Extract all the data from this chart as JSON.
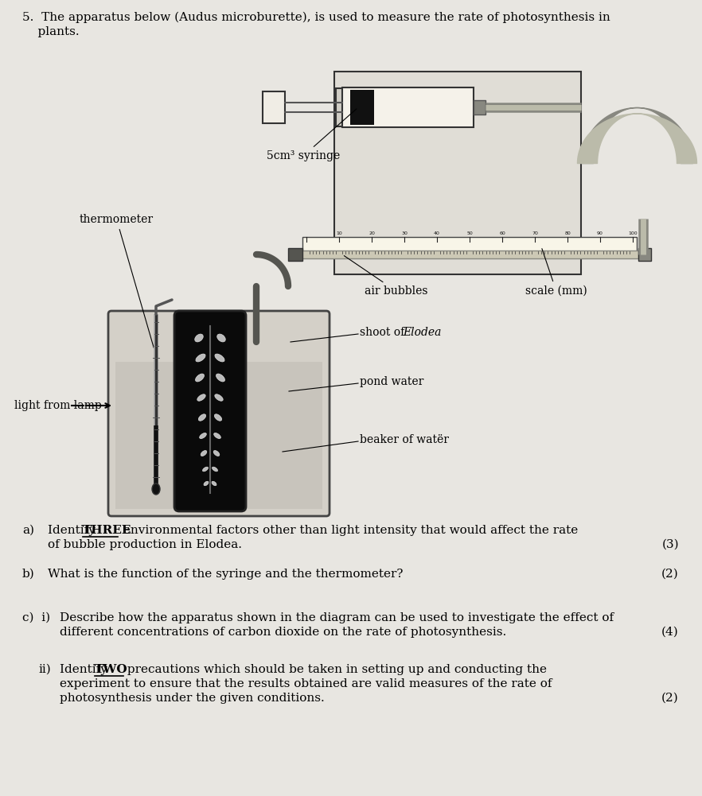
{
  "bg_color": "#e8e6e1",
  "title_line1": "5.  The apparatus below (Audus microburette), is used to measure the rate of photosynthesis in",
  "title_line2": "    plants.",
  "diagram_labels": {
    "syringe": "5cm³ syringe",
    "thermometer": "thermometer",
    "air_bubbles": "air bubbles",
    "scale": "scale (mm)",
    "shoot": "shoot of ",
    "shoot_italic": "Elodea",
    "pond_water": "pond water",
    "beaker": "beaker of watër",
    "light": "light from lamp"
  },
  "qa_label_a": "a)",
  "qa_text_a1": "Identify ",
  "qa_bold_a": "THREE",
  "qa_text_a2": " environmental factors other than light intensity that would affect the rate",
  "qa_text_a3": "of bubble production in Elodea.",
  "qa_marks_a": "(3)",
  "qa_label_b": "b)",
  "qa_text_b": "What is the function of the syringe and the thermometer?",
  "qa_marks_b": "(2)",
  "qa_label_c": "c)  i)",
  "qa_text_c1": "Describe how the apparatus shown in the diagram can be used to investigate the effect of",
  "qa_text_c2": "different concentrations of carbon dioxide on the rate of photosynthesis.",
  "qa_marks_c": "(4)",
  "qa_label_cii": "ii)",
  "qa_text_cii1": "Identify ",
  "qa_bold_cii": "TWO",
  "qa_text_cii2": " precautions which should be taken in setting up and conducting the",
  "qa_text_cii3": "experiment to ensure that the results obtained are valid measures of the rate of",
  "qa_text_cii4": "photosynthesis under the given conditions.",
  "qa_marks_cii": "(2)"
}
